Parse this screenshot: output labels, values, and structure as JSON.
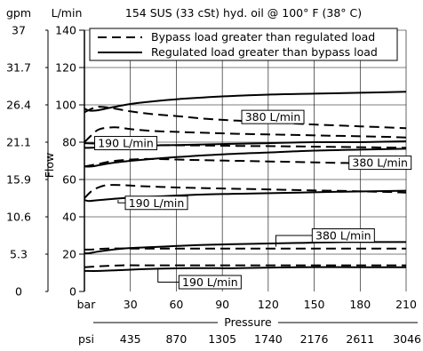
{
  "chart_data": {
    "type": "line",
    "title": "154 SUS (33 cSt) hyd. oil @ 100° F (38° C)",
    "ylabel": "Flow",
    "xlabel": "Pressure",
    "x_unit_primary": "bar",
    "x_unit_secondary": "psi",
    "y_unit_primary": "L/min",
    "y_unit_secondary": "gpm",
    "xlim": [
      0,
      210
    ],
    "ylim": [
      0,
      140
    ],
    "x_ticks": [
      30,
      60,
      90,
      120,
      150,
      180,
      210
    ],
    "x_ticks_psi": [
      "435",
      "870",
      "1305",
      "1740",
      "2176",
      "2611",
      "3046"
    ],
    "y_ticks": [
      0,
      20,
      40,
      60,
      80,
      100,
      120,
      140
    ],
    "y_ticks_gpm": [
      {
        "label": "37",
        "at": 140
      },
      {
        "label": "31.7",
        "at": 120
      },
      {
        "label": "26.4",
        "at": 100
      },
      {
        "label": "21.1",
        "at": 80
      },
      {
        "label": "15.9",
        "at": 60
      },
      {
        "label": "10.6",
        "at": 40
      },
      {
        "label": "5.3",
        "at": 20
      },
      {
        "label": "0",
        "at": 0
      }
    ],
    "grid": true,
    "legend": {
      "placement": "top",
      "entries": [
        {
          "label": "Bypass load greater than regulated load",
          "style": "dashed"
        },
        {
          "label": "Regulated load greater than bypass load",
          "style": "solid"
        }
      ]
    },
    "annotations": [
      {
        "text": "380 L/min",
        "at": [
          123,
          93.5
        ],
        "point": [
          112,
          95
        ],
        "dir": "left"
      },
      {
        "text": "190 L/min",
        "at": [
          27,
          79.5
        ],
        "point": [
          5,
          80
        ],
        "dir": "left"
      },
      {
        "text": "380 L/min",
        "at": [
          193,
          69
        ],
        "point": [
          210,
          71
        ],
        "dir": "right"
      },
      {
        "text": "190 L/min",
        "at": [
          47,
          47.5
        ],
        "point": [
          22,
          49
        ],
        "dir": "left"
      },
      {
        "text": "380 L/min",
        "at": [
          169,
          30
        ],
        "point": [
          125,
          24
        ],
        "dir": "left"
      },
      {
        "text": "190 L/min",
        "at": [
          82,
          5
        ],
        "point": [
          48,
          12
        ],
        "dir": "left"
      }
    ],
    "series": [
      {
        "style": "dashed",
        "x": [
          0,
          5,
          10,
          20,
          30,
          45,
          60,
          80,
          100,
          125,
          150,
          180,
          210
        ],
        "y": [
          96,
          98,
          99,
          98,
          96.5,
          95,
          94,
          92.5,
          91.5,
          90.5,
          89.5,
          88.5,
          87.5
        ]
      },
      {
        "style": "solid",
        "x": [
          0,
          3,
          8,
          20,
          35,
          60,
          90,
          120,
          150,
          180,
          210
        ],
        "y": [
          98,
          97,
          97,
          99,
          101,
          103,
          104.5,
          105.5,
          106,
          106.5,
          107
        ]
      },
      {
        "style": "dashed",
        "x": [
          0,
          5,
          10,
          20,
          30,
          45,
          60,
          80,
          100,
          130,
          160,
          190,
          210
        ],
        "y": [
          80,
          84,
          87,
          88,
          87,
          86,
          85.5,
          85,
          84.5,
          84,
          83.5,
          83,
          82.5
        ]
      },
      {
        "style": "solid",
        "x": [
          0,
          5,
          15,
          30,
          60,
          90,
          120,
          150,
          180,
          210
        ],
        "y": [
          77,
          77,
          77.5,
          78,
          78.5,
          79,
          79.5,
          80,
          80,
          80.5
        ]
      },
      {
        "style": "dashed",
        "x": [
          0,
          15,
          40,
          70,
          100,
          130,
          160,
          210
        ],
        "y": [
          79.5,
          79,
          78.5,
          78.3,
          78,
          77.8,
          77.5,
          77
        ]
      },
      {
        "style": "solid",
        "x": [
          0,
          5,
          15,
          30,
          60,
          90,
          120,
          150,
          180,
          210
        ],
        "y": [
          67,
          67,
          68.5,
          70,
          72,
          73.5,
          74.5,
          75.5,
          76,
          76.5
        ]
      },
      {
        "style": "dashed",
        "x": [
          0,
          10,
          20,
          40,
          70,
          100,
          130,
          160,
          190,
          210
        ],
        "y": [
          67,
          68.5,
          70,
          71,
          70.5,
          70,
          69.5,
          69,
          68.5,
          68
        ]
      },
      {
        "style": "dashed",
        "x": [
          0,
          5,
          10,
          15,
          25,
          35,
          50,
          70,
          100,
          130,
          160,
          190,
          210
        ],
        "y": [
          50,
          54,
          56,
          57,
          57,
          56.5,
          56,
          55.5,
          55,
          54.5,
          54,
          53.5,
          53
        ]
      },
      {
        "style": "solid",
        "x": [
          0,
          3,
          10,
          25,
          50,
          80,
          110,
          140,
          170,
          210
        ],
        "y": [
          49,
          48.5,
          49,
          50,
          51,
          52,
          52.5,
          53,
          53.5,
          54
        ]
      },
      {
        "style": "solid",
        "x": [
          0,
          3,
          10,
          25,
          50,
          80,
          110,
          140,
          170,
          210
        ],
        "y": [
          20.5,
          20.5,
          21.5,
          23,
          24,
          25,
          25.5,
          26,
          26.5,
          26.5
        ]
      },
      {
        "style": "dashed",
        "x": [
          0,
          5,
          15,
          30,
          60,
          90,
          120,
          150,
          180,
          210
        ],
        "y": [
          22.5,
          22.5,
          23,
          23,
          23,
          23,
          23,
          23,
          23,
          23
        ]
      },
      {
        "style": "dashed",
        "x": [
          0,
          10,
          25,
          40,
          70,
          100,
          140,
          180,
          210
        ],
        "y": [
          13,
          13.5,
          14,
          14,
          14,
          14,
          14,
          14,
          14
        ]
      },
      {
        "style": "solid",
        "x": [
          0,
          10,
          25,
          40,
          70,
          100,
          140,
          180,
          210
        ],
        "y": [
          11,
          11,
          11.5,
          12,
          12.5,
          12.5,
          13,
          13,
          13
        ]
      }
    ]
  }
}
